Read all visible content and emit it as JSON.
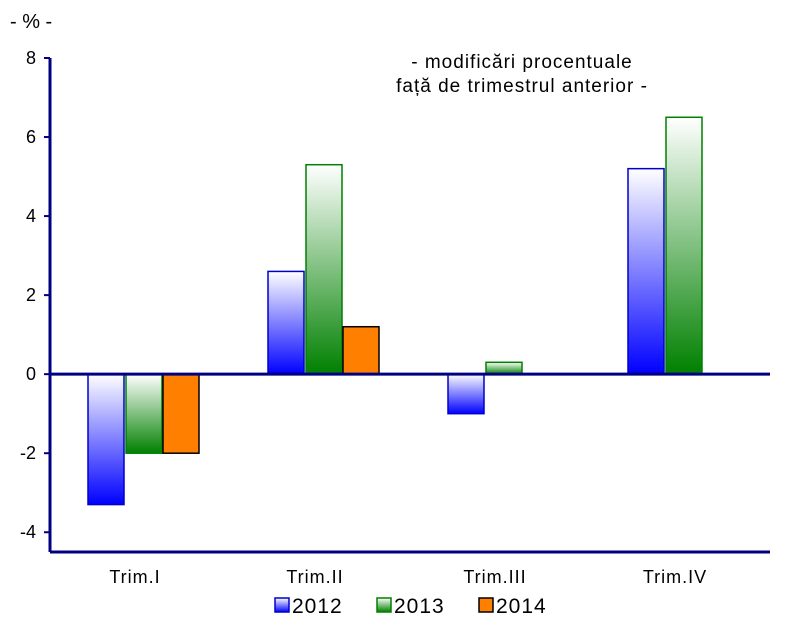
{
  "chart_data": {
    "type": "bar",
    "unit_label": "- % -",
    "annotation": [
      "- modificări procentuale",
      "față de trimestrul anterior -"
    ],
    "categories": [
      "Trim.I",
      "Trim.II",
      "Trim.III",
      "Trim.IV"
    ],
    "series": [
      {
        "name": "2012",
        "values": [
          -3.3,
          2.6,
          -1.0,
          5.2
        ],
        "color": "#1a1aff"
      },
      {
        "name": "2013",
        "values": [
          -2.0,
          5.3,
          0.3,
          6.5
        ],
        "color": "#008000"
      },
      {
        "name": "2014",
        "values": [
          -2.0,
          1.2,
          null,
          null
        ],
        "color": "#ff8000"
      }
    ],
    "ylim": [
      -4.5,
      8
    ],
    "yticks": [
      -4,
      -2,
      0,
      2,
      4,
      6,
      8
    ],
    "legend_position": "bottom",
    "grid": false
  }
}
